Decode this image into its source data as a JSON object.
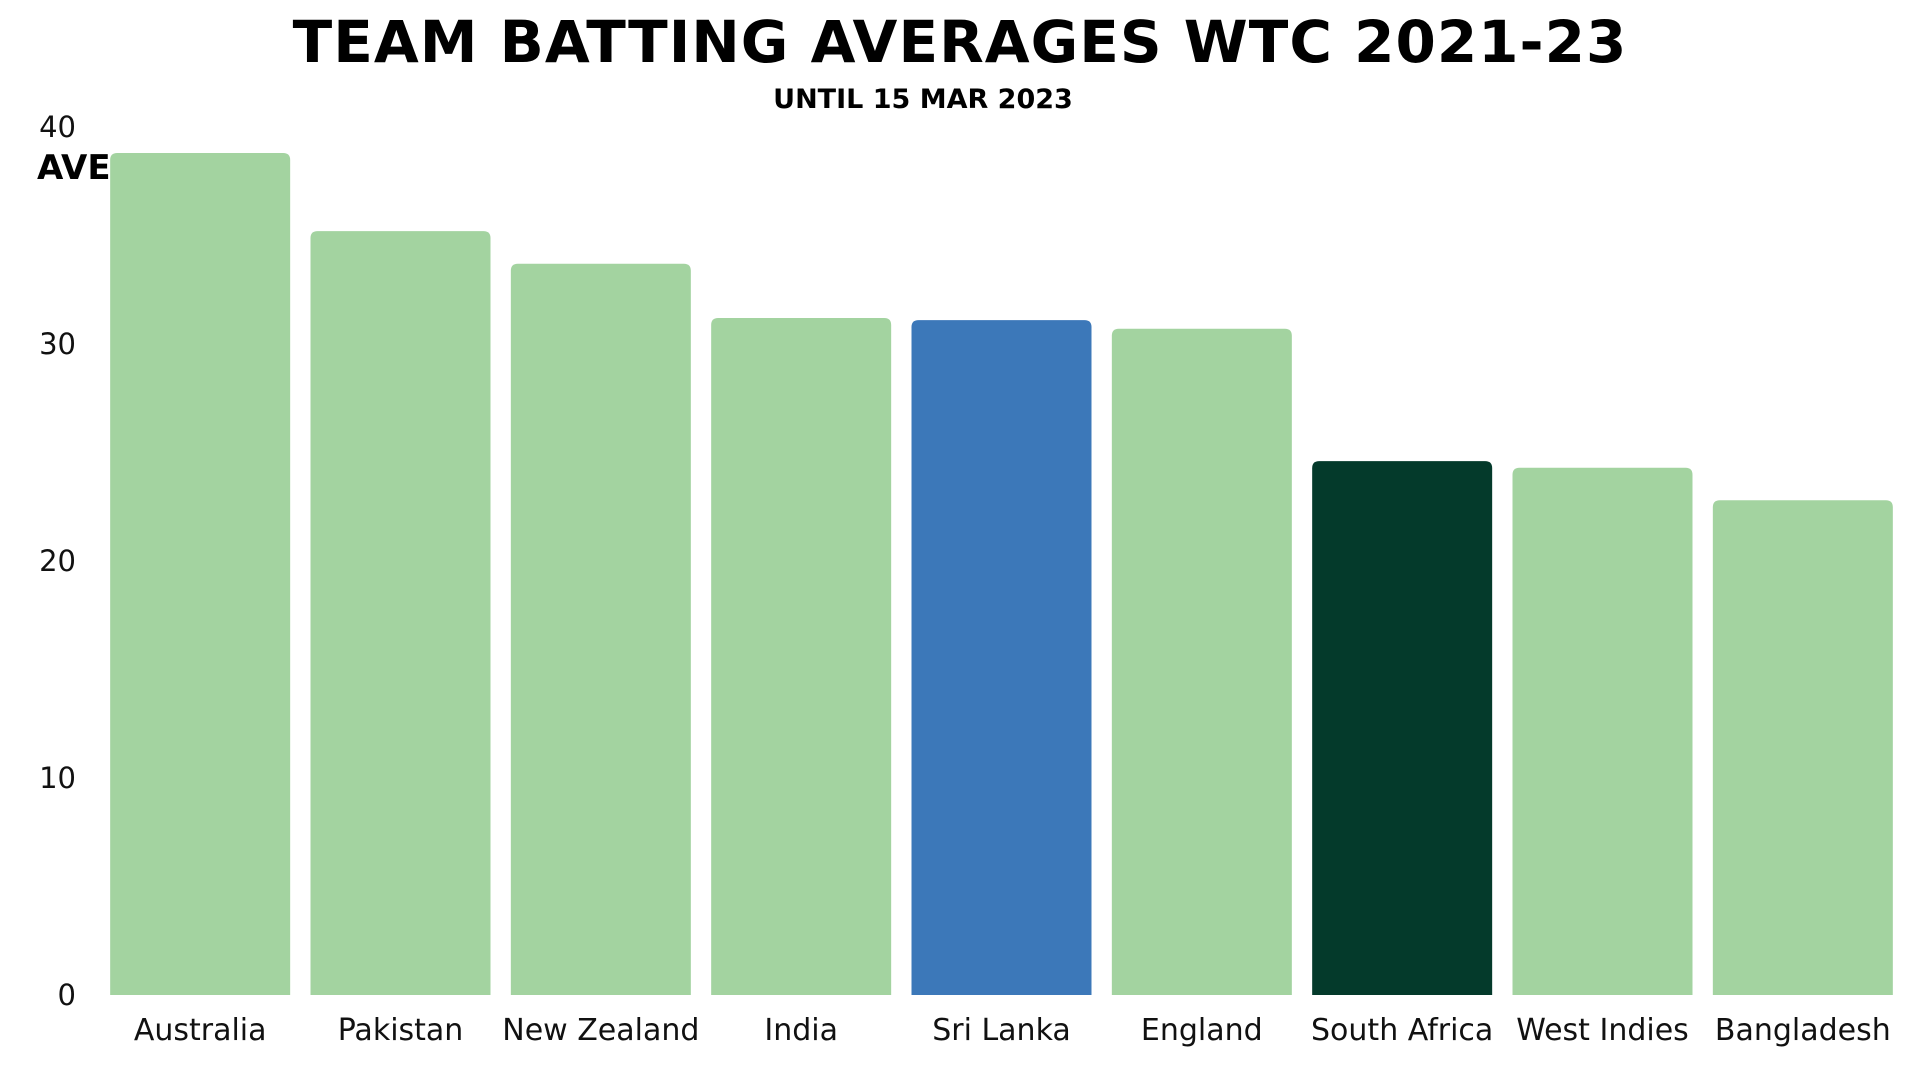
{
  "chart_data": {
    "type": "bar",
    "title": "TEAM BATTING AVERAGES WTC 2021-23",
    "subtitle": "UNTIL 15 MAR 2023",
    "ylabel": "AVE",
    "xlabel": "",
    "ylim": [
      0,
      40
    ],
    "yticks": [
      0,
      10,
      20,
      30,
      40
    ],
    "grid": false,
    "categories": [
      "Australia",
      "Pakistan",
      "New Zealand",
      "India",
      "Sri Lanka",
      "England",
      "South Africa",
      "West Indies",
      "Bangladesh"
    ],
    "values": [
      38.8,
      35.2,
      33.7,
      31.2,
      31.1,
      30.7,
      24.6,
      24.3,
      22.8
    ],
    "colors": [
      "#a3d3a0",
      "#a3d3a0",
      "#a3d3a0",
      "#a3d3a0",
      "#3c78b9",
      "#a3d3a0",
      "#043a2b",
      "#a3d3a0",
      "#a3d3a0"
    ]
  }
}
